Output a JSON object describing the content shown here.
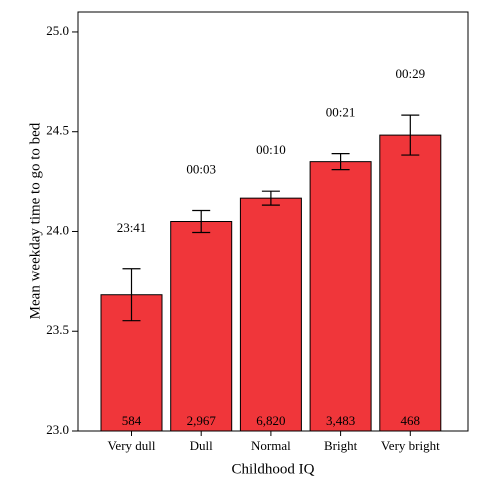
{
  "chart_data": {
    "type": "bar",
    "x_label": "Childhood IQ",
    "y_label": "Mean weekday time to go to bed",
    "categories": [
      "Very dull",
      "Dull",
      "Normal",
      "Bright",
      "Very bright"
    ],
    "values": [
      23.683,
      24.05,
      24.167,
      24.35,
      24.483
    ],
    "value_labels": [
      "23:41",
      "00:03",
      "00:10",
      "00:21",
      "00:29"
    ],
    "errors": [
      0.13,
      0.055,
      0.035,
      0.04,
      0.1
    ],
    "counts": [
      "584",
      "2,967",
      "6,820",
      "3,483",
      "468"
    ],
    "color": "#f0363a",
    "ylim": [
      23,
      25.1
    ],
    "yticks": [
      {
        "value": 23,
        "label": "23.0"
      },
      {
        "value": 23.5,
        "label": "23.5"
      },
      {
        "value": 24,
        "label": "24.0"
      },
      {
        "value": 24.5,
        "label": "24.5"
      },
      {
        "value": 25,
        "label": "25.0"
      }
    ]
  }
}
